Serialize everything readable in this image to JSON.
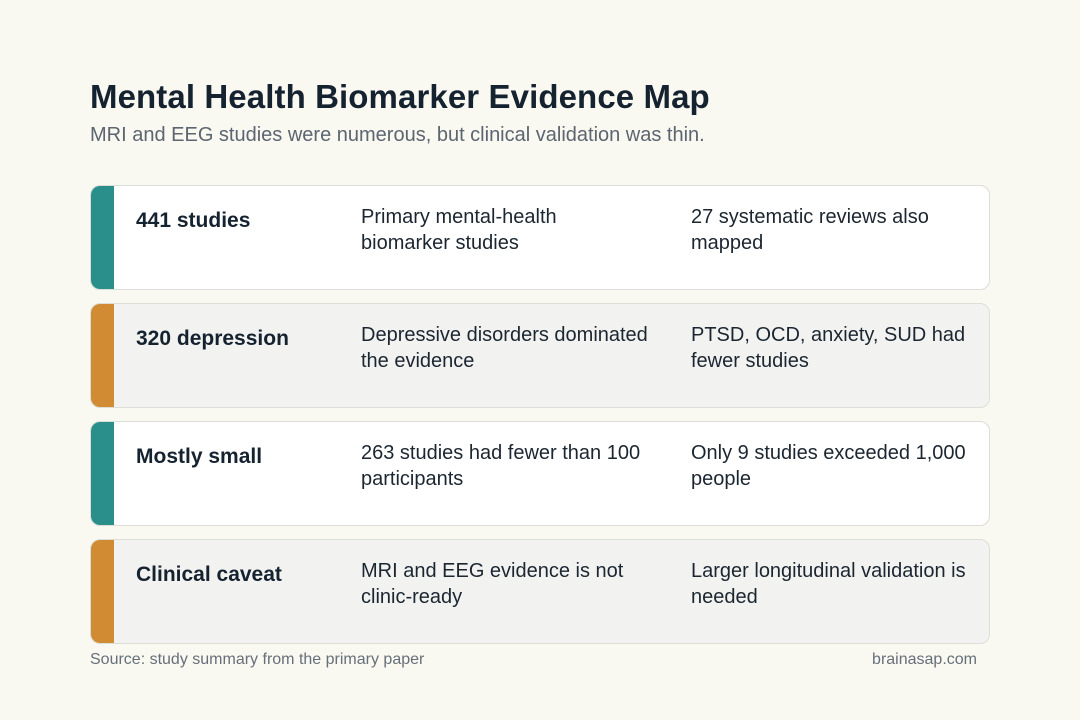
{
  "header": {
    "title": "Mental Health Biomarker Evidence Map",
    "subtitle": "MRI and EEG studies were numerous, but clinical validation was thin."
  },
  "colors": {
    "teal": "#2a8f8a",
    "orange": "#d18b33"
  },
  "rows": [
    {
      "label": "441 studies",
      "middle": "Primary mental-health biomarker studies",
      "right": "27 systematic reviews also mapped"
    },
    {
      "label": "320 depression",
      "middle": "Depressive disorders dominated the evidence",
      "right": "PTSD, OCD, anxiety, SUD had fewer studies"
    },
    {
      "label": "Mostly small",
      "middle": "263 studies had fewer than 100 participants",
      "right": "Only 9 studies exceeded 1,000 people"
    },
    {
      "label": "Clinical caveat",
      "middle": "MRI and EEG evidence is not clinic-ready",
      "right": "Larger longitudinal validation is needed"
    }
  ],
  "footer": {
    "source": "Source: study summary from the primary paper",
    "site": "brainasap.com"
  }
}
